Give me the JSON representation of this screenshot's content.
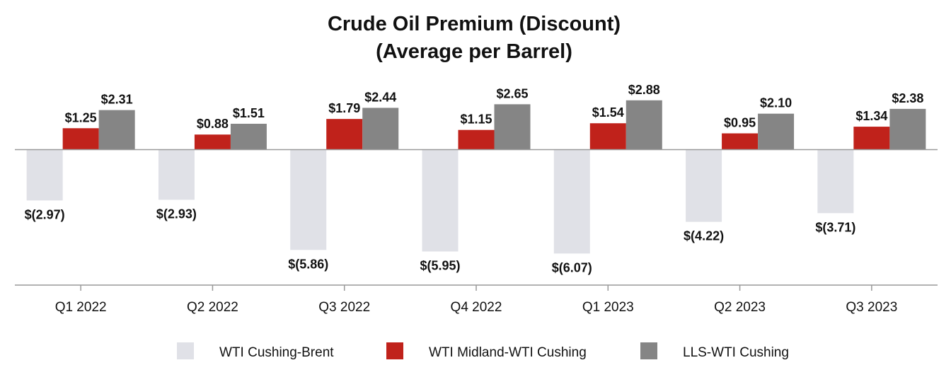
{
  "chart_data": {
    "type": "bar",
    "title": "Crude Oil Premium (Discount)",
    "subtitle": "(Average per Barrel)",
    "categories": [
      "Q1 2022",
      "Q2 2022",
      "Q3 2022",
      "Q4 2022",
      "Q1 2023",
      "Q2 2023",
      "Q3 2023"
    ],
    "series": [
      {
        "name": "WTI Cushing-Brent",
        "color": "#e0e1e7",
        "values": [
          -2.97,
          -2.93,
          -5.86,
          -5.95,
          -6.07,
          -4.22,
          -3.71
        ],
        "labels": [
          "$(2.97)",
          "$(2.93)",
          "$(5.86)",
          "$(5.95)",
          "$(6.07)",
          "$(4.22)",
          "$(3.71)"
        ]
      },
      {
        "name": "WTI Midland-WTI Cushing",
        "color": "#c0221b",
        "values": [
          1.25,
          0.88,
          1.79,
          1.15,
          1.54,
          0.95,
          1.34
        ],
        "labels": [
          "$1.25",
          "$0.88",
          "$1.79",
          "$1.15",
          "$1.54",
          "$0.95",
          "$1.34"
        ]
      },
      {
        "name": "LLS-WTI Cushing",
        "color": "#858585",
        "values": [
          2.31,
          1.51,
          2.44,
          2.65,
          2.88,
          2.1,
          2.38
        ],
        "labels": [
          "$2.31",
          "$1.51",
          "$2.44",
          "$2.65",
          "$2.88",
          "$2.10",
          "$2.38"
        ]
      }
    ],
    "xlabel": "",
    "ylabel": "",
    "ylim": [
      -7.9,
      3.5
    ],
    "grid": false,
    "legend_position": "bottom",
    "axis_color": "#999999"
  }
}
